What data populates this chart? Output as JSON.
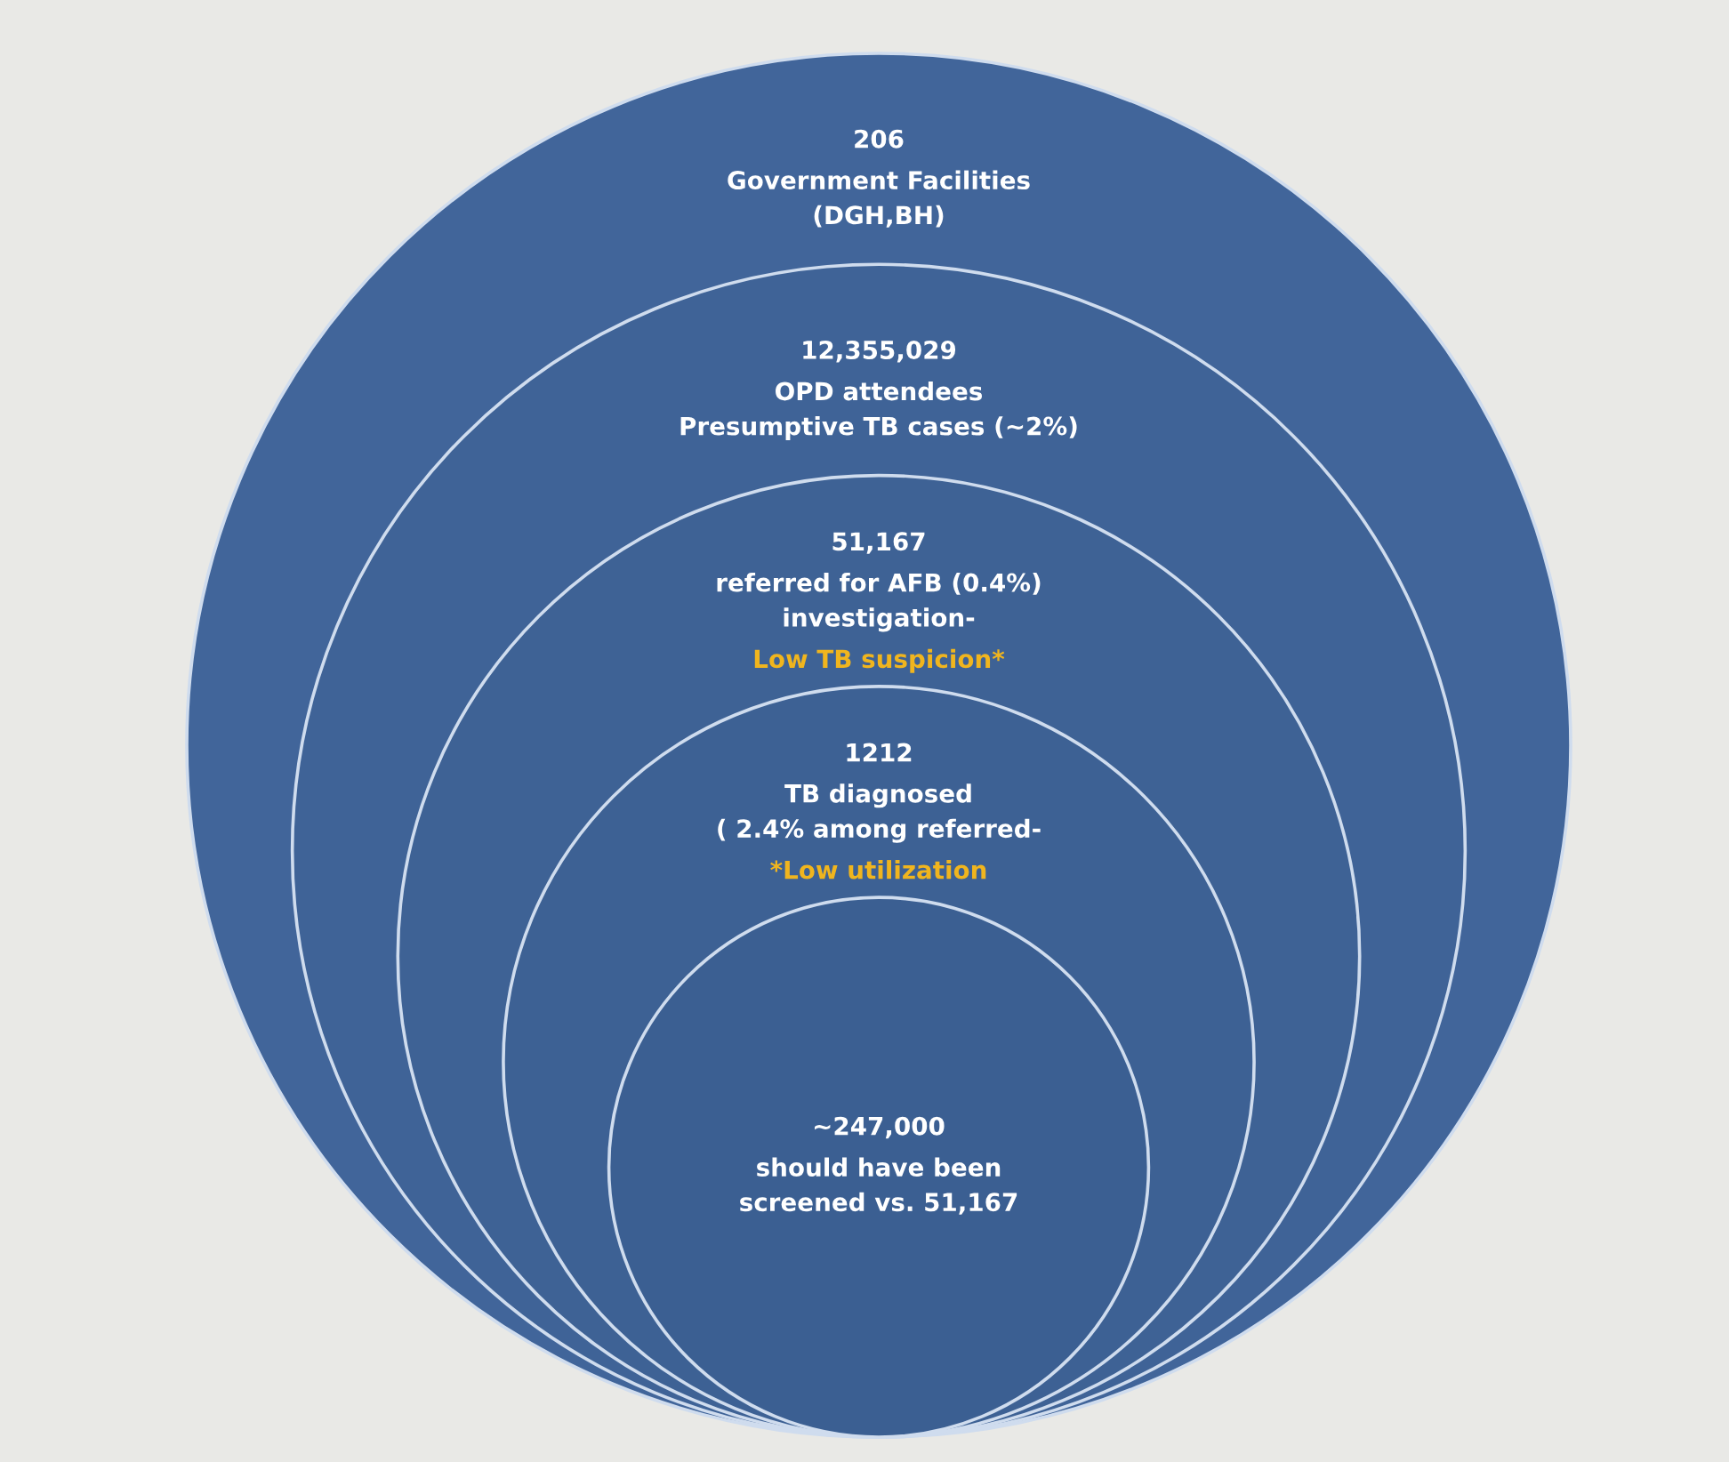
{
  "chart_data": {
    "type": "other",
    "categories": [
      "Government Facilities\n(DGH,BH)",
      "OPD attendees\nPresumptive TB cases (~2%)",
      "referred for AFB (0.4%)\ninvestigation-",
      "TB diagnosed\n( 2.4% among referred-",
      "should have been\nscreened vs. 51,167"
    ],
    "values": [
      206,
      12355029,
      51167,
      1212,
      247000
    ],
    "value_labels": [
      "206",
      "12,355,029",
      "51,167",
      "1212",
      "~247,000"
    ],
    "colors": [
      "#41659a",
      "#3f6397",
      "#3e6295",
      "#3d6194",
      "#3b5f92"
    ],
    "annotations": [
      {
        "text": "Low TB suspicion*",
        "x": "referred for AFB (0.4%)\ninvestigation-"
      },
      {
        "text": "*Low utilization",
        "x": "TB diagnosed\n( 2.4% among referred-"
      }
    ]
  }
}
